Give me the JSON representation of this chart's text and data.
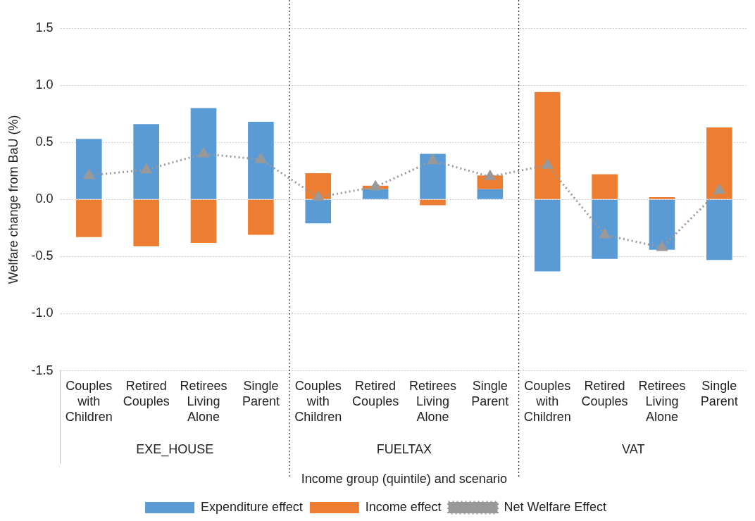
{
  "chart_data": {
    "type": "bar",
    "stacked": true,
    "categories": [
      "Couples with Children",
      "Retired Couples",
      "Retirees Living Alone",
      "Single Parent",
      "Couples with Children",
      "Retired Couples",
      "Retirees Living Alone",
      "Single Parent",
      "Couples with Children",
      "Retired Couples",
      "Retirees Living Alone",
      "Single Parent"
    ],
    "series": [
      {
        "name": "Expenditure effect",
        "color": "#5b9bd5",
        "values": [
          0.53,
          0.66,
          0.8,
          0.68,
          -0.21,
          0.09,
          0.4,
          0.09,
          -0.63,
          -0.52,
          -0.44,
          -0.53
        ]
      },
      {
        "name": "Income effect",
        "color": "#ed7d31",
        "values": [
          -0.33,
          -0.41,
          -0.38,
          -0.31,
          0.23,
          0.03,
          -0.05,
          0.12,
          0.94,
          0.22,
          0.02,
          0.63
        ]
      },
      {
        "name": "Net Welfare Effect",
        "type": "line",
        "color": "#999999",
        "marker": "triangle",
        "line_style": "dotted",
        "values": [
          0.21,
          0.26,
          0.4,
          0.35,
          0.02,
          0.11,
          0.34,
          0.2,
          0.3,
          -0.31,
          -0.42,
          0.08
        ]
      }
    ],
    "ylim": [
      -1.5,
      1.5
    ],
    "yticks": [
      {
        "value": -1.5,
        "label": "-1.5"
      },
      {
        "value": -1,
        "label": "-1.0"
      },
      {
        "value": -0.5,
        "label": "-0.5"
      },
      {
        "value": 0,
        "label": "0.0"
      },
      {
        "value": 0.5,
        "label": "0.5"
      },
      {
        "value": 1,
        "label": "1.0"
      },
      {
        "value": 1.5,
        "label": "1.5"
      }
    ],
    "ylabel": "Welfare change from BaU (%)",
    "xlabel": "Income group (quintile) and scenario",
    "annotations": [
      "EXE_HOUSE",
      "FUELTAX",
      "VAT"
    ],
    "grid": "y",
    "legend": "bottom"
  }
}
